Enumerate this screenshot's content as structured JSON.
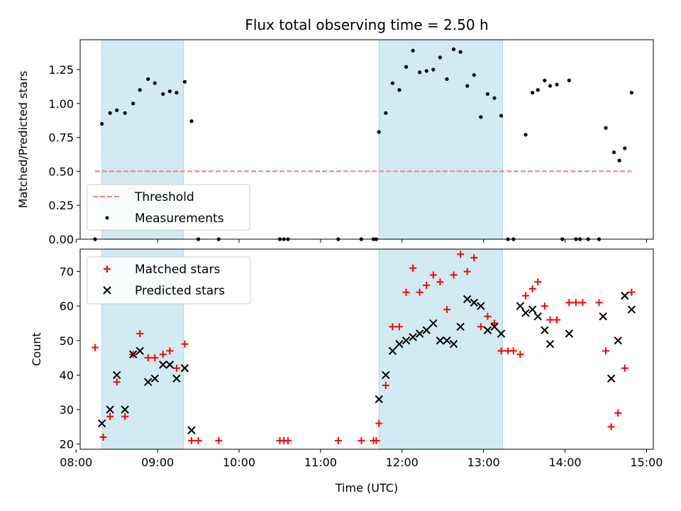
{
  "figure": {
    "title": "Flux total observing time = 2.50 h"
  },
  "chart_data": [
    {
      "type": "scatter",
      "ylabel": "Matched/Predicted stars",
      "xlabel": "",
      "x_unit": "time of day (UTC)",
      "xlim": [
        "08:03",
        "15:05"
      ],
      "ylim": [
        0,
        1.47
      ],
      "x_ticks": [
        "08:00",
        "09:00",
        "10:00",
        "11:00",
        "12:00",
        "13:00",
        "14:00",
        "15:00"
      ],
      "y_ticks": [
        0.0,
        0.25,
        0.5,
        0.75,
        1.0,
        1.25
      ],
      "y_tick_labels": [
        "0.00",
        "0.25",
        "0.50",
        "0.75",
        "1.00",
        "1.25"
      ],
      "grid": false,
      "legend": {
        "placement": "lower-left",
        "entries": [
          "Threshold",
          "Measurements"
        ]
      },
      "shaded_intervals": [
        [
          "08:19",
          "09:19"
        ],
        [
          "11:43",
          "13:14"
        ]
      ],
      "shade_color": "#add8e6",
      "threshold": {
        "name": "Threshold",
        "y": 0.5,
        "x_range": [
          "08:14",
          "14:49"
        ],
        "color": "#f08080",
        "style": "dashed"
      },
      "series": [
        {
          "name": "Measurements",
          "color": "#000000",
          "marker": "dot",
          "points": [
            [
              "08:14",
              0.0
            ],
            [
              "08:19",
              0.85
            ],
            [
              "08:25",
              0.93
            ],
            [
              "08:30",
              0.95
            ],
            [
              "08:36",
              0.93
            ],
            [
              "08:42",
              1.0
            ],
            [
              "08:47",
              1.1
            ],
            [
              "08:53",
              1.18
            ],
            [
              "08:58",
              1.15
            ],
            [
              "09:04",
              1.07
            ],
            [
              "09:09",
              1.09
            ],
            [
              "09:14",
              1.08
            ],
            [
              "09:20",
              1.16
            ],
            [
              "09:25",
              0.87
            ],
            [
              "09:30",
              0.0
            ],
            [
              "09:45",
              0.0
            ],
            [
              "10:30",
              0.0
            ],
            [
              "10:33",
              0.0
            ],
            [
              "10:36",
              0.0
            ],
            [
              "11:13",
              0.0
            ],
            [
              "11:30",
              0.0
            ],
            [
              "11:39",
              0.0
            ],
            [
              "11:41",
              0.0
            ],
            [
              "11:43",
              0.79
            ],
            [
              "11:48",
              0.93
            ],
            [
              "11:53",
              1.15
            ],
            [
              "11:58",
              1.1
            ],
            [
              "12:03",
              1.27
            ],
            [
              "12:08",
              1.39
            ],
            [
              "12:13",
              1.23
            ],
            [
              "12:18",
              1.24
            ],
            [
              "12:23",
              1.25
            ],
            [
              "12:28",
              1.34
            ],
            [
              "12:33",
              1.18
            ],
            [
              "12:38",
              1.4
            ],
            [
              "12:43",
              1.38
            ],
            [
              "12:48",
              1.13
            ],
            [
              "12:53",
              1.21
            ],
            [
              "12:58",
              0.9
            ],
            [
              "13:03",
              1.07
            ],
            [
              "13:08",
              1.04
            ],
            [
              "13:13",
              0.91
            ],
            [
              "13:18",
              0.0
            ],
            [
              "13:22",
              0.0
            ],
            [
              "13:31",
              0.77
            ],
            [
              "13:36",
              1.08
            ],
            [
              "13:40",
              1.1
            ],
            [
              "13:45",
              1.17
            ],
            [
              "13:49",
              1.13
            ],
            [
              "13:54",
              1.14
            ],
            [
              "13:58",
              0.0
            ],
            [
              "14:03",
              1.17
            ],
            [
              "14:08",
              0.0
            ],
            [
              "14:11",
              0.0
            ],
            [
              "14:17",
              0.0
            ],
            [
              "14:25",
              0.0
            ],
            [
              "14:30",
              0.82
            ],
            [
              "14:36",
              0.64
            ],
            [
              "14:40",
              0.58
            ],
            [
              "14:44",
              0.67
            ],
            [
              "14:49",
              1.08
            ]
          ]
        }
      ]
    },
    {
      "type": "scatter",
      "ylabel": "Count",
      "xlabel": "Time (UTC)",
      "x_unit": "time of day (UTC)",
      "xlim": [
        "08:03",
        "15:05"
      ],
      "ylim": [
        18.5,
        76.5
      ],
      "x_ticks": [
        "08:00",
        "09:00",
        "10:00",
        "11:00",
        "12:00",
        "13:00",
        "14:00",
        "15:00"
      ],
      "y_ticks": [
        20,
        30,
        40,
        50,
        60,
        70
      ],
      "y_tick_labels": [
        "20",
        "30",
        "40",
        "50",
        "60",
        "70"
      ],
      "grid": false,
      "legend": {
        "placement": "top-left",
        "entries": [
          "Matched stars",
          "Predicted stars"
        ]
      },
      "shaded_intervals": [
        [
          "08:19",
          "09:19"
        ],
        [
          "11:43",
          "13:14"
        ]
      ],
      "shade_color": "#add8e6",
      "series": [
        {
          "name": "Matched stars",
          "color": "#ff0000",
          "marker": "plus",
          "points": [
            [
              "08:14",
              48
            ],
            [
              "08:20",
              22
            ],
            [
              "08:25",
              28
            ],
            [
              "08:30",
              38
            ],
            [
              "08:36",
              28
            ],
            [
              "08:42",
              46
            ],
            [
              "08:47",
              52
            ],
            [
              "08:53",
              45
            ],
            [
              "08:58",
              45
            ],
            [
              "09:04",
              46
            ],
            [
              "09:09",
              47
            ],
            [
              "09:14",
              42
            ],
            [
              "09:20",
              49
            ],
            [
              "09:25",
              21
            ],
            [
              "09:30",
              21
            ],
            [
              "09:45",
              21
            ],
            [
              "10:30",
              21
            ],
            [
              "10:33",
              21
            ],
            [
              "10:36",
              21
            ],
            [
              "11:13",
              21
            ],
            [
              "11:30",
              21
            ],
            [
              "11:39",
              21
            ],
            [
              "11:41",
              21
            ],
            [
              "11:43",
              26
            ],
            [
              "11:48",
              37
            ],
            [
              "11:53",
              54
            ],
            [
              "11:58",
              54
            ],
            [
              "12:03",
              64
            ],
            [
              "12:08",
              71
            ],
            [
              "12:13",
              64
            ],
            [
              "12:18",
              66
            ],
            [
              "12:23",
              69
            ],
            [
              "12:28",
              67
            ],
            [
              "12:33",
              59
            ],
            [
              "12:38",
              69
            ],
            [
              "12:43",
              75
            ],
            [
              "12:48",
              70
            ],
            [
              "12:53",
              74
            ],
            [
              "12:58",
              54
            ],
            [
              "13:03",
              57
            ],
            [
              "13:08",
              55
            ],
            [
              "13:13",
              47
            ],
            [
              "13:18",
              47
            ],
            [
              "13:22",
              47
            ],
            [
              "13:27",
              46
            ],
            [
              "13:31",
              63
            ],
            [
              "13:36",
              65
            ],
            [
              "13:40",
              67
            ],
            [
              "13:45",
              60
            ],
            [
              "13:49",
              56
            ],
            [
              "13:54",
              56
            ],
            [
              "14:03",
              61
            ],
            [
              "14:08",
              61
            ],
            [
              "14:13",
              61
            ],
            [
              "14:25",
              61
            ],
            [
              "14:30",
              47
            ],
            [
              "14:34",
              25
            ],
            [
              "14:39",
              29
            ],
            [
              "14:44",
              42
            ],
            [
              "14:49",
              64
            ]
          ]
        },
        {
          "name": "Predicted stars",
          "color": "#000000",
          "marker": "x",
          "points": [
            [
              "08:19",
              26
            ],
            [
              "08:25",
              30
            ],
            [
              "08:30",
              40
            ],
            [
              "08:36",
              30
            ],
            [
              "08:42",
              46
            ],
            [
              "08:47",
              47
            ],
            [
              "08:53",
              38
            ],
            [
              "08:58",
              39
            ],
            [
              "09:04",
              43
            ],
            [
              "09:09",
              43
            ],
            [
              "09:14",
              39
            ],
            [
              "09:20",
              42
            ],
            [
              "09:25",
              24
            ],
            [
              "11:43",
              33
            ],
            [
              "11:48",
              40
            ],
            [
              "11:53",
              47
            ],
            [
              "11:58",
              49
            ],
            [
              "12:03",
              50
            ],
            [
              "12:08",
              51
            ],
            [
              "12:13",
              52
            ],
            [
              "12:18",
              53
            ],
            [
              "12:23",
              55
            ],
            [
              "12:28",
              50
            ],
            [
              "12:33",
              50
            ],
            [
              "12:38",
              49
            ],
            [
              "12:43",
              54
            ],
            [
              "12:48",
              62
            ],
            [
              "12:53",
              61
            ],
            [
              "12:58",
              60
            ],
            [
              "13:03",
              53
            ],
            [
              "13:08",
              54
            ],
            [
              "13:13",
              52
            ],
            [
              "13:27",
              60
            ],
            [
              "13:31",
              58
            ],
            [
              "13:36",
              59
            ],
            [
              "13:40",
              57
            ],
            [
              "13:45",
              53
            ],
            [
              "13:49",
              49
            ],
            [
              "14:03",
              52
            ],
            [
              "14:28",
              57
            ],
            [
              "14:34",
              39
            ],
            [
              "14:39",
              50
            ],
            [
              "14:44",
              63
            ],
            [
              "14:49",
              59
            ]
          ]
        }
      ]
    }
  ]
}
